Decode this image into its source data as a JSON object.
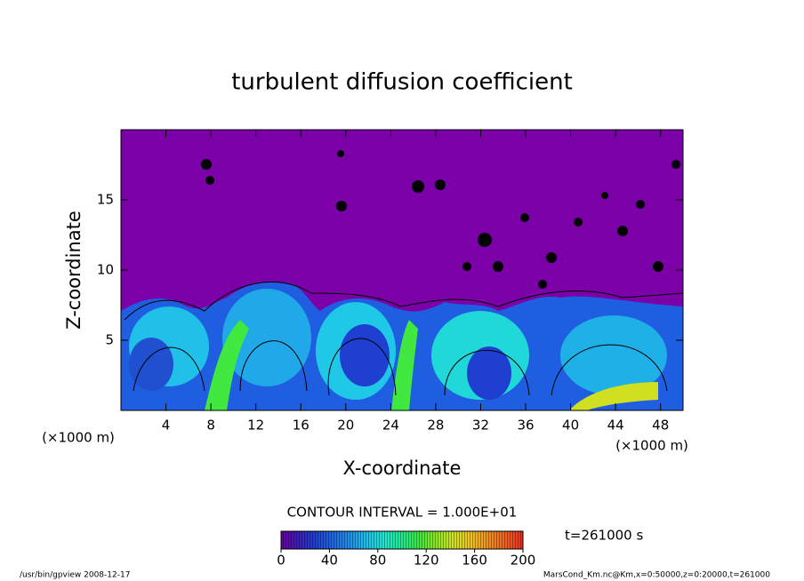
{
  "chart_data": {
    "type": "contour",
    "title": "turbulent diffusion coefficient",
    "x_label": "X-coordinate",
    "y_label": "Z-coordinate",
    "x_unit": "(×1000 m)",
    "xlim": [
      0,
      50
    ],
    "xticks": [
      4,
      8,
      12,
      16,
      20,
      24,
      28,
      32,
      36,
      40,
      44,
      48
    ],
    "ylim": [
      0,
      20
    ],
    "yticks": [
      5,
      10,
      15
    ],
    "background_color": "#7b00a8",
    "contour_interval_label": "CONTOUR INTERVAL = 1.000E+01",
    "time_label": "t=261000 s",
    "colorbar": {
      "lim": [
        0,
        200
      ],
      "ticks": [
        0,
        40,
        80,
        120,
        160,
        200
      ],
      "colors": [
        "#6a00a0",
        "#3a1fb8",
        "#1f3fd0",
        "#1f68e0",
        "#2090e8",
        "#20c0e8",
        "#20e8d0",
        "#20e890",
        "#40e840",
        "#90e820",
        "#d0e020",
        "#f0c020",
        "#f09020",
        "#f06020",
        "#e83020"
      ]
    },
    "footer_left": "/usr/bin/gpview   2008-12-17",
    "footer_right": "MarsCond_Km.nc@Km,x=0:50000,z=0:20000,t=261000"
  }
}
